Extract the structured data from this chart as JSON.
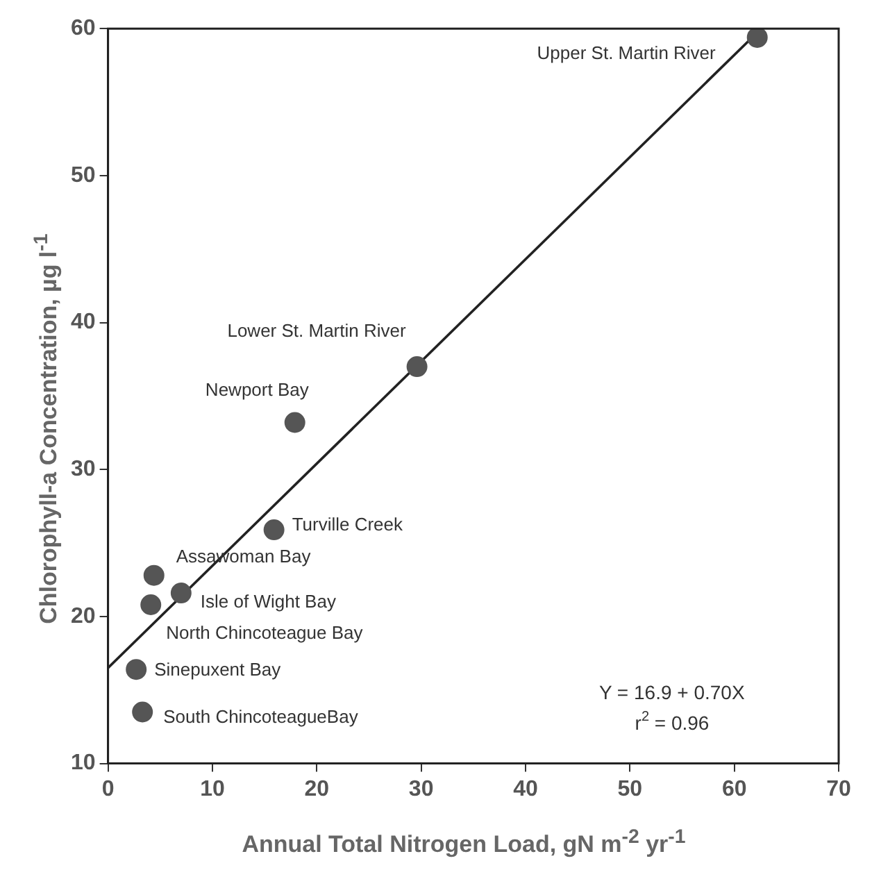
{
  "chart_data": {
    "type": "scatter",
    "xlabel": "Annual Total Nitrogen Load, gN m$^{-2}$ yr$^{-1}$",
    "ylabel": "Chlorophyll-a Concentration, µg l$^{-1}$",
    "xlim": [
      0,
      70
    ],
    "ylim": [
      10,
      60
    ],
    "xticks": [
      0,
      10,
      20,
      30,
      40,
      50,
      60,
      70
    ],
    "yticks": [
      10,
      20,
      30,
      40,
      50,
      60
    ],
    "series": [
      {
        "type": "scatter",
        "marker": "circle",
        "color": "#555555",
        "x": [
          62.2,
          29.6,
          17.9,
          15.9,
          4.4,
          7.0,
          4.1,
          2.7,
          3.3
        ],
        "values": [
          59.4,
          37.0,
          33.2,
          25.9,
          22.8,
          21.6,
          20.8,
          16.4,
          13.5
        ]
      },
      {
        "type": "line",
        "marker": "none",
        "color": "#222222",
        "line_style": "solid",
        "x": [
          0,
          62
        ],
        "values": [
          16.5,
          59.6
        ]
      }
    ],
    "annotations": [
      {
        "text": "Upper St. Martin River",
        "x": 62.2,
        "y": 59.4
      },
      {
        "text": "Lower St. Martin River",
        "x": 29.6,
        "y": 37.0
      },
      {
        "text": "Newport Bay",
        "x": 17.9,
        "y": 33.2
      },
      {
        "text": "Turville Creek",
        "x": 15.9,
        "y": 25.9
      },
      {
        "text": "Assawoman Bay",
        "x": 4.4,
        "y": 22.8
      },
      {
        "text": "Isle of Wight Bay",
        "x": 7.0,
        "y": 21.6
      },
      {
        "text": "North Chincoteague Bay",
        "x": 4.1,
        "y": 20.8
      },
      {
        "text": "Sinepuxent Bay",
        "x": 2.7,
        "y": 16.4
      },
      {
        "text": "South ChincoteagueBay",
        "x": 3.3,
        "y": 13.5
      },
      "Y = 16.9 + 0.70X",
      "r$^{2}$ = 0.96"
    ]
  }
}
